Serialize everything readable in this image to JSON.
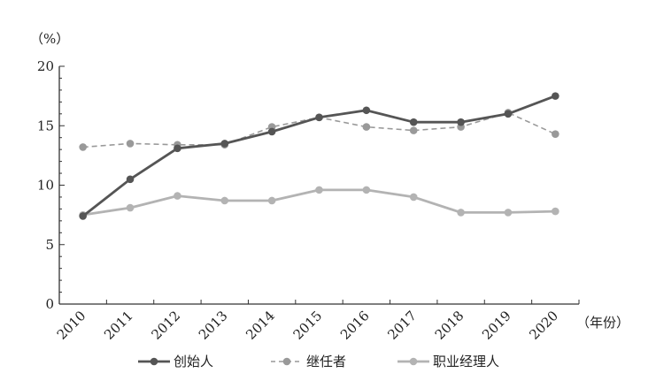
{
  "chart_data": {
    "type": "line",
    "y_unit_label": "（%）",
    "x_unit_label": "（年份）",
    "ylim": [
      0,
      20
    ],
    "yticks": [
      0,
      5,
      10,
      15,
      20
    ],
    "categories": [
      "2010",
      "2011",
      "2012",
      "2013",
      "2014",
      "2015",
      "2016",
      "2017",
      "2018",
      "2019",
      "2020"
    ],
    "grid": false,
    "legend_position": "bottom",
    "series": [
      {
        "name": "创始人",
        "color": "#555555",
        "dash": "solid",
        "values": [
          7.4,
          10.5,
          13.1,
          13.5,
          14.5,
          15.7,
          16.3,
          15.3,
          15.3,
          16.0,
          17.5
        ]
      },
      {
        "name": "继任者",
        "color": "#999999",
        "dash": "dashed",
        "values": [
          13.2,
          13.5,
          13.4,
          13.4,
          14.9,
          15.7,
          14.9,
          14.6,
          14.9,
          16.1,
          14.3
        ]
      },
      {
        "name": "职业经理人",
        "color": "#b3b3b3",
        "dash": "solid",
        "values": [
          7.5,
          8.1,
          9.1,
          8.7,
          8.7,
          9.6,
          9.6,
          9.0,
          7.7,
          7.7,
          7.8
        ]
      }
    ]
  }
}
